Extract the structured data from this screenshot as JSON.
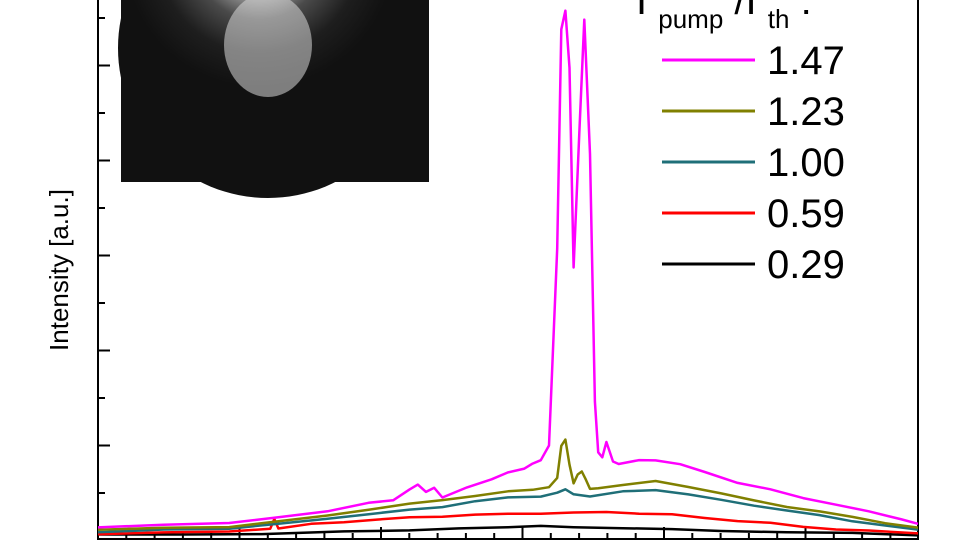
{
  "chart_data": {
    "type": "line",
    "ylabel": "Intensity [a.u.]",
    "legend": {
      "title_main": "I",
      "title_sub1": "pump",
      "title_sep": "/I",
      "title_sub2": "th",
      "title_end": ":",
      "placement": "top-right"
    },
    "inset": "camera image of emission spot",
    "series": [
      {
        "name": "1.47",
        "color": "#ff00ff",
        "points": [
          [
            0,
            9
          ],
          [
            8,
            11
          ],
          [
            16,
            14
          ],
          [
            22,
            20
          ],
          [
            28,
            26
          ],
          [
            33,
            34
          ],
          [
            36,
            38
          ],
          [
            38,
            48
          ],
          [
            39,
            53
          ],
          [
            40,
            46
          ],
          [
            41,
            51
          ],
          [
            42,
            41
          ],
          [
            45,
            50
          ],
          [
            48,
            60
          ],
          [
            50,
            66
          ],
          [
            52,
            70
          ],
          [
            53,
            76
          ],
          [
            54,
            80
          ],
          [
            55,
            95
          ],
          [
            56,
            300
          ],
          [
            56.5,
            530
          ],
          [
            57,
            548
          ],
          [
            57.5,
            490
          ],
          [
            58,
            280
          ],
          [
            58.7,
            420
          ],
          [
            59.3,
            540
          ],
          [
            60,
            400
          ],
          [
            60.6,
            140
          ],
          [
            61,
            88
          ],
          [
            61.5,
            82
          ],
          [
            62,
            98
          ],
          [
            62.8,
            78
          ],
          [
            63.5,
            76
          ],
          [
            66,
            80
          ],
          [
            68,
            79
          ],
          [
            71,
            75
          ],
          [
            74,
            67
          ],
          [
            78,
            56
          ],
          [
            82,
            48
          ],
          [
            86,
            40
          ],
          [
            90,
            33
          ],
          [
            94,
            25
          ],
          [
            98,
            18
          ],
          [
            100,
            12
          ]
        ]
      },
      {
        "name": "1.23",
        "color": "#808000",
        "points": [
          [
            0,
            6
          ],
          [
            8,
            8
          ],
          [
            16,
            10
          ],
          [
            22,
            16
          ],
          [
            28,
            22
          ],
          [
            33,
            27
          ],
          [
            38,
            33
          ],
          [
            42,
            38
          ],
          [
            46,
            42
          ],
          [
            50,
            46
          ],
          [
            53,
            49
          ],
          [
            55,
            51
          ],
          [
            56,
            60
          ],
          [
            56.5,
            95
          ],
          [
            57,
            100
          ],
          [
            57.5,
            75
          ],
          [
            58,
            55
          ],
          [
            58.5,
            64
          ],
          [
            59,
            68
          ],
          [
            59.5,
            58
          ],
          [
            60,
            50
          ],
          [
            61,
            50
          ],
          [
            64,
            53
          ],
          [
            68,
            57
          ],
          [
            72,
            52
          ],
          [
            76,
            44
          ],
          [
            80,
            37
          ],
          [
            84,
            31
          ],
          [
            88,
            25
          ],
          [
            92,
            20
          ],
          [
            96,
            14
          ],
          [
            100,
            8
          ]
        ]
      },
      {
        "name": "1.00",
        "color": "#1f6f78",
        "points": [
          [
            0,
            4
          ],
          [
            8,
            6
          ],
          [
            16,
            8
          ],
          [
            22,
            13
          ],
          [
            28,
            18
          ],
          [
            33,
            22
          ],
          [
            38,
            27
          ],
          [
            42,
            31
          ],
          [
            46,
            36
          ],
          [
            50,
            40
          ],
          [
            54,
            42
          ],
          [
            56,
            45
          ],
          [
            57,
            48
          ],
          [
            58,
            43
          ],
          [
            60,
            42
          ],
          [
            64,
            46
          ],
          [
            68,
            48
          ],
          [
            72,
            44
          ],
          [
            76,
            37
          ],
          [
            80,
            32
          ],
          [
            84,
            27
          ],
          [
            88,
            21
          ],
          [
            92,
            16
          ],
          [
            96,
            11
          ],
          [
            100,
            6
          ]
        ]
      },
      {
        "name": "0.59",
        "color": "#ff0000",
        "points": [
          [
            0,
            2
          ],
          [
            8,
            3
          ],
          [
            16,
            5
          ],
          [
            21,
            7
          ],
          [
            21.5,
            18
          ],
          [
            22,
            8
          ],
          [
            26,
            12
          ],
          [
            30,
            15
          ],
          [
            34,
            17
          ],
          [
            38,
            19
          ],
          [
            42,
            21
          ],
          [
            46,
            22
          ],
          [
            50,
            23
          ],
          [
            54,
            24
          ],
          [
            58,
            24
          ],
          [
            62,
            25
          ],
          [
            66,
            24
          ],
          [
            70,
            22
          ],
          [
            74,
            19
          ],
          [
            78,
            16
          ],
          [
            82,
            13
          ],
          [
            86,
            10
          ],
          [
            90,
            7
          ],
          [
            94,
            5
          ],
          [
            100,
            2
          ]
        ]
      },
      {
        "name": "0.29",
        "color": "#000000",
        "points": [
          [
            0,
            1
          ],
          [
            10,
            1.5
          ],
          [
            20,
            2.5
          ],
          [
            30,
            4
          ],
          [
            38,
            6
          ],
          [
            44,
            8
          ],
          [
            50,
            9
          ],
          [
            54,
            10
          ],
          [
            58,
            10
          ],
          [
            64,
            9
          ],
          [
            70,
            8
          ],
          [
            76,
            6
          ],
          [
            84,
            4
          ],
          [
            92,
            2.5
          ],
          [
            100,
            1
          ]
        ]
      }
    ],
    "xlim": [
      0,
      100
    ],
    "ylim": [
      0,
      560
    ],
    "grid": false
  }
}
